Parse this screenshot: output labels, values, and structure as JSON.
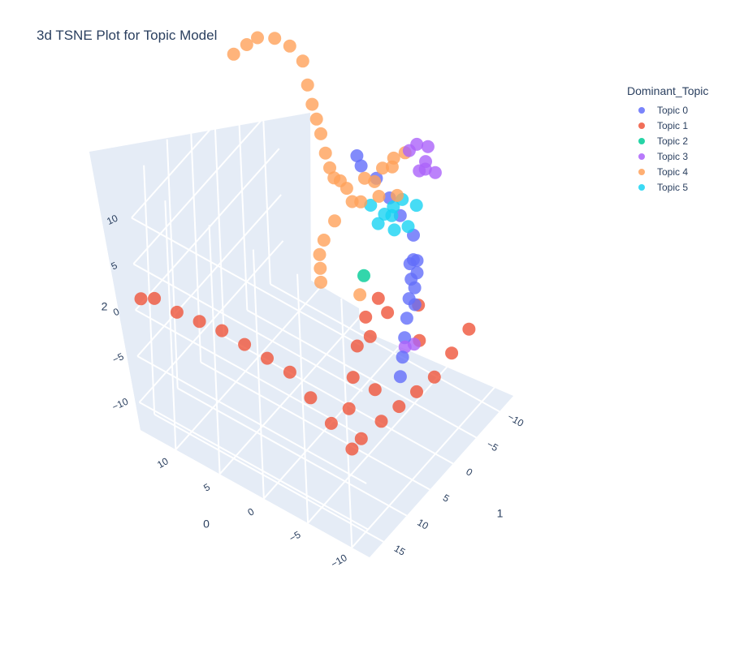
{
  "chart_data": {
    "type": "scatter",
    "title": "3d TSNE Plot for Topic Model",
    "axes": {
      "x": {
        "label": "0",
        "ticks": [
          10,
          5,
          0,
          -5,
          -10
        ]
      },
      "y": {
        "label": "1",
        "ticks": [
          -10,
          -5,
          0,
          5,
          10,
          15
        ]
      },
      "z": {
        "label": "2",
        "ticks": [
          10,
          5,
          0,
          -5,
          -10
        ]
      }
    },
    "legend": {
      "title": "Dominant_Topic",
      "position": "top-right"
    },
    "series": [
      {
        "name": "Topic 0",
        "color": "#636efa",
        "points": [
          [
            5.0,
            -13.0,
            4.0
          ],
          [
            4.0,
            -12.0,
            4.0
          ],
          [
            2.0,
            -11.5,
            4.0
          ],
          [
            0.0,
            -10.5,
            3.5
          ],
          [
            -2.0,
            -9.0,
            3.5
          ],
          [
            -4.0,
            -8.0,
            3.0
          ],
          [
            -5.0,
            -6.0,
            2.0
          ],
          [
            -5.5,
            -4.5,
            1.0
          ],
          [
            -6.0,
            -3.0,
            0.0
          ],
          [
            -6.5,
            -1.5,
            -1.0
          ],
          [
            -7.0,
            0.0,
            -2.0
          ],
          [
            -7.5,
            1.5,
            -3.0
          ],
          [
            -8.0,
            3.0,
            -4.0
          ],
          [
            -6.0,
            -5.0,
            3.0
          ],
          [
            -6.5,
            -4.0,
            2.5
          ],
          [
            -7.0,
            -2.5,
            2.0
          ],
          [
            -7.5,
            -1.5,
            1.0
          ],
          [
            -6.0,
            -3.5,
            3.5
          ]
        ]
      },
      {
        "name": "Topic 1",
        "color": "#ef553b",
        "points": [
          [
            15.0,
            15.0,
            -1.0
          ],
          [
            14.0,
            14.0,
            -1.0
          ],
          [
            12.0,
            13.0,
            -2.0
          ],
          [
            10.0,
            12.0,
            -2.5
          ],
          [
            8.0,
            11.0,
            -3.0
          ],
          [
            6.0,
            10.0,
            -4.0
          ],
          [
            4.0,
            9.0,
            -5.0
          ],
          [
            2.0,
            8.0,
            -6.0
          ],
          [
            0.0,
            7.5,
            -8.0
          ],
          [
            -2.0,
            7.0,
            -10.0
          ],
          [
            -4.0,
            6.5,
            -12.0
          ],
          [
            -3.0,
            5.0,
            -9.0
          ],
          [
            -2.5,
            3.0,
            -7.0
          ],
          [
            -2.0,
            1.0,
            -5.0
          ],
          [
            -2.0,
            -1.0,
            -3.0
          ],
          [
            -3.0,
            -2.0,
            -1.0
          ],
          [
            -4.0,
            4.5,
            -12.0
          ],
          [
            -5.0,
            2.0,
            -11.0
          ],
          [
            -6.0,
            0.0,
            -10.0
          ],
          [
            -7.0,
            -2.0,
            -9.0
          ],
          [
            -8.0,
            -4.0,
            -8.0
          ],
          [
            -9.0,
            -6.0,
            -6.0
          ],
          [
            -10.0,
            -8.0,
            -4.0
          ],
          [
            -4.0,
            -2.0,
            -2.0
          ],
          [
            -3.0,
            0.0,
            -4.0
          ],
          [
            -5.0,
            3.0,
            -7.0
          ],
          [
            -7.0,
            -3.0,
            -4.0
          ],
          [
            -6.5,
            -4.0,
            -1.0
          ]
        ]
      },
      {
        "name": "Topic 2",
        "color": "#00cc96",
        "points": [
          [
            -2.0,
            -1.0,
            1.5
          ]
        ]
      },
      {
        "name": "Topic 3",
        "color": "#ab63fa",
        "points": [
          [
            -5.0,
            -10.0,
            12.0
          ],
          [
            -4.0,
            -9.5,
            12.0
          ],
          [
            -5.5,
            -8.5,
            11.5
          ],
          [
            -6.0,
            -7.5,
            11.5
          ],
          [
            -5.0,
            -8.0,
            10.5
          ],
          [
            -6.0,
            -9.5,
            10.0
          ],
          [
            -4.5,
            -7.0,
            13.0
          ],
          [
            -7.0,
            0.0,
            -3.0
          ],
          [
            -7.5,
            -1.0,
            -3.0
          ]
        ]
      },
      {
        "name": "Topic 4",
        "color": "#ffa15a",
        "points": [
          [
            16.0,
            -8.0,
            12.0
          ],
          [
            15.0,
            -9.0,
            13.0
          ],
          [
            14.0,
            -9.5,
            14.0
          ],
          [
            12.0,
            -9.5,
            15.0
          ],
          [
            10.0,
            -9.0,
            15.5
          ],
          [
            8.0,
            -8.0,
            15.5
          ],
          [
            7.0,
            -7.0,
            14.0
          ],
          [
            6.0,
            -6.0,
            13.0
          ],
          [
            5.0,
            -5.0,
            12.5
          ],
          [
            4.0,
            -4.0,
            12.0
          ],
          [
            3.0,
            -3.0,
            11.0
          ],
          [
            2.0,
            -2.0,
            10.5
          ],
          [
            1.0,
            -1.0,
            10.5
          ],
          [
            0.0,
            -0.5,
            11.0
          ],
          [
            -1.0,
            0.0,
            11.0
          ],
          [
            -2.0,
            -2.0,
            11.5
          ],
          [
            -3.0,
            -4.0,
            12.0
          ],
          [
            -3.5,
            -5.5,
            12.5
          ],
          [
            -4.0,
            -7.0,
            12.5
          ],
          [
            -3.0,
            -6.0,
            11.0
          ],
          [
            -2.0,
            -4.0,
            10.0
          ],
          [
            -1.0,
            -1.0,
            9.0
          ],
          [
            0.0,
            1.0,
            7.5
          ],
          [
            0.5,
            2.5,
            6.0
          ],
          [
            0.5,
            3.5,
            5.0
          ],
          [
            0.5,
            3.5,
            3.5
          ],
          [
            0.5,
            3.5,
            2.0
          ],
          [
            -2.0,
            -1.0,
            9.5
          ],
          [
            -3.0,
            -3.0,
            9.5
          ],
          [
            -4.0,
            -5.0,
            9.0
          ],
          [
            -2.0,
            0.0,
            0.0
          ]
        ]
      },
      {
        "name": "Topic 5",
        "color": "#19d3f3",
        "points": [
          [
            -3.0,
            -4.0,
            7.0
          ],
          [
            -3.5,
            -5.0,
            7.5
          ],
          [
            -4.0,
            -6.0,
            8.0
          ],
          [
            -2.5,
            -3.5,
            6.0
          ],
          [
            -3.0,
            -5.5,
            6.0
          ],
          [
            -2.0,
            -3.0,
            8.0
          ],
          [
            -4.5,
            -8.0,
            6.5
          ],
          [
            -4.0,
            -7.0,
            4.5
          ],
          [
            -3.5,
            -5.0,
            5.0
          ]
        ]
      }
    ]
  },
  "legend": {
    "title": "Dominant_Topic",
    "items": [
      {
        "label": "Topic 0",
        "color": "#636efa"
      },
      {
        "label": "Topic 1",
        "color": "#ef553b"
      },
      {
        "label": "Topic 2",
        "color": "#00cc96"
      },
      {
        "label": "Topic 3",
        "color": "#ab63fa"
      },
      {
        "label": "Topic 4",
        "color": "#ffa15a"
      },
      {
        "label": "Topic 5",
        "color": "#19d3f3"
      }
    ]
  }
}
